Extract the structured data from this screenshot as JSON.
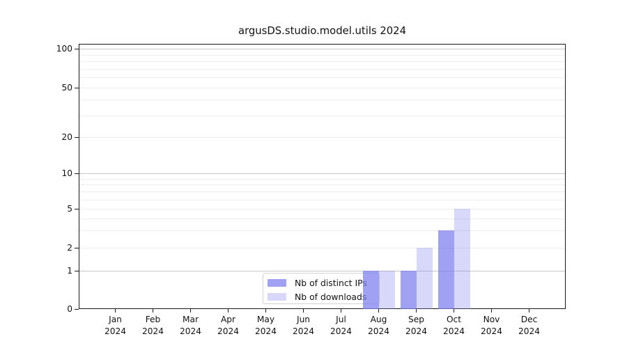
{
  "chart_data": {
    "type": "bar",
    "title": "argusDS.studio.model.utils 2024",
    "categories": [
      "Jan",
      "Feb",
      "Mar",
      "Apr",
      "May",
      "Jun",
      "Jul",
      "Aug",
      "Sep",
      "Oct",
      "Nov",
      "Dec"
    ],
    "xtick_year": "2024",
    "series": [
      {
        "name": "Nb of distinct IPs",
        "color": "rgba(125,125,240,0.72)",
        "values": [
          0,
          0,
          0,
          0,
          0,
          0,
          0,
          1,
          1,
          3,
          0,
          0
        ]
      },
      {
        "name": "Nb of downloads",
        "color": "rgba(125,125,240,0.30)",
        "values": [
          0,
          0,
          0,
          0,
          0,
          0,
          0,
          1,
          2,
          5,
          0,
          0
        ]
      }
    ],
    "yticks": [
      0,
      1,
      2,
      5,
      10,
      20,
      50,
      100
    ],
    "ylim": [
      0,
      100
    ],
    "scale": "symlog",
    "grid": true,
    "legend_position": "bottom-center",
    "colors": {
      "bar_dark": "#a8a8f4",
      "bar_light": "#dcdcfa",
      "grid_major": "#c6c6c6",
      "grid_minor": "#ededed"
    }
  }
}
